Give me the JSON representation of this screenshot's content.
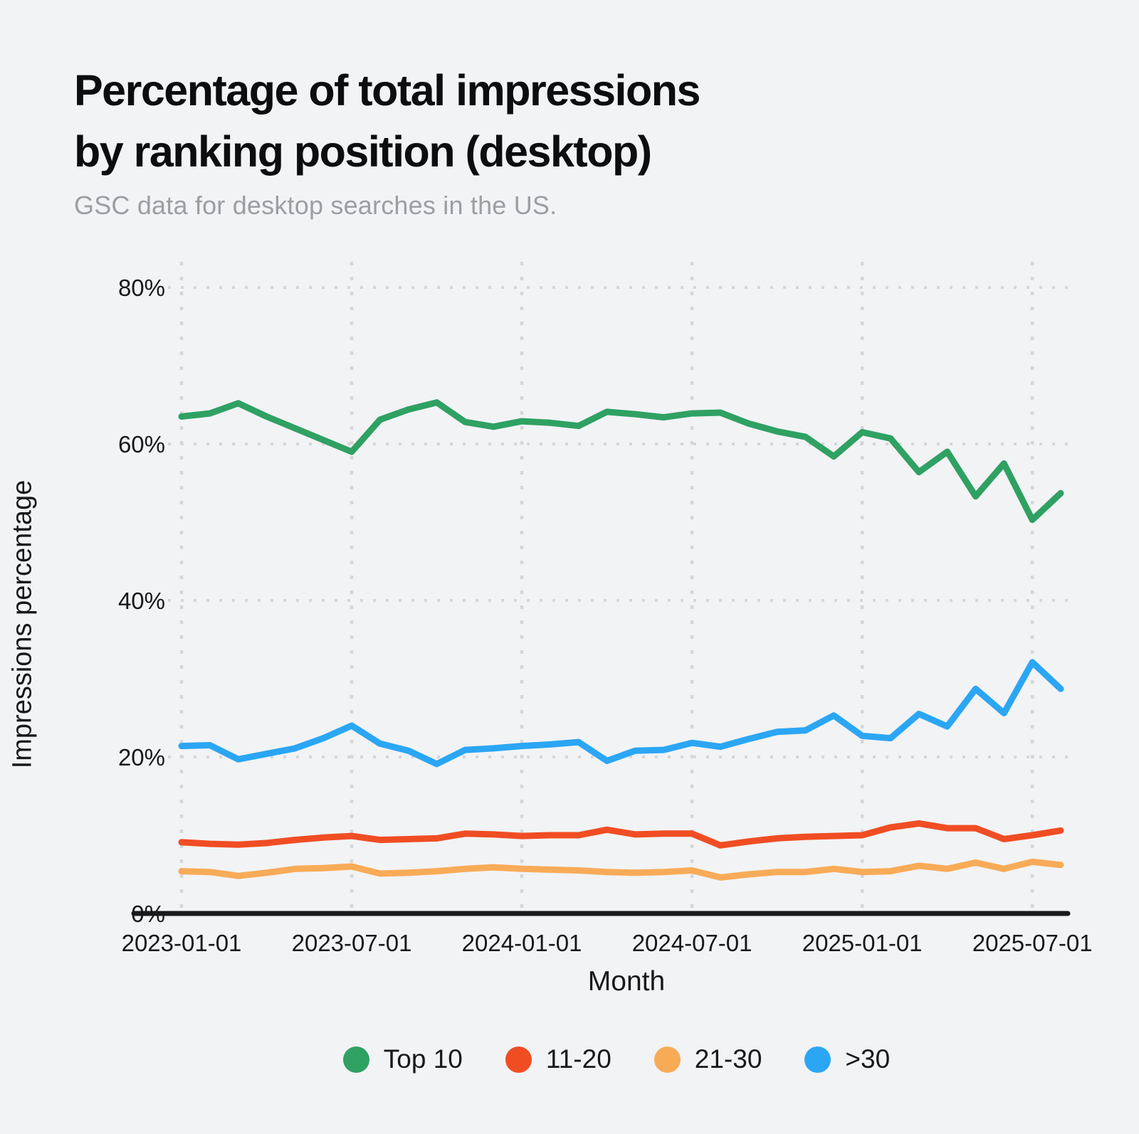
{
  "title": {
    "line1": "Percentage of total impressions",
    "line2": "by ranking position (desktop)"
  },
  "subtitle": "GSC data for desktop searches in the US.",
  "colors": {
    "background": "#f2f3f5",
    "title_text": "#0c0d0e",
    "subtitle_text": "#9b9ea3",
    "tick_text": "#17181a",
    "gridline": "#d5d6d8",
    "axis_line": "#1a1b1c"
  },
  "chart_data": {
    "type": "line",
    "title": "Percentage of total impressions by ranking position (desktop)",
    "subtitle": "GSC data for desktop searches in the US.",
    "xlabel": "Month",
    "ylabel": "Impressions percentage",
    "ylim": [
      0,
      80
    ],
    "grid": "dotted",
    "legend_position": "bottom",
    "x": [
      "2023-01",
      "2023-02",
      "2023-03",
      "2023-04",
      "2023-05",
      "2023-06",
      "2023-07",
      "2023-08",
      "2023-09",
      "2023-10",
      "2023-11",
      "2023-12",
      "2024-01",
      "2024-02",
      "2024-03",
      "2024-04",
      "2024-05",
      "2024-06",
      "2024-07",
      "2024-08",
      "2024-09",
      "2024-10",
      "2024-11",
      "2024-12",
      "2025-01",
      "2025-02",
      "2025-03",
      "2025-04",
      "2025-05",
      "2025-06",
      "2025-07",
      "2025-08"
    ],
    "x_ticks": [
      {
        "i": 0,
        "label": "2023-01-01"
      },
      {
        "i": 6,
        "label": "2023-07-01"
      },
      {
        "i": 12,
        "label": "2024-01-01"
      },
      {
        "i": 18,
        "label": "2024-07-01"
      },
      {
        "i": 24,
        "label": "2025-01-01"
      },
      {
        "i": 30,
        "label": "2025-07-01"
      }
    ],
    "y_ticks": [
      {
        "v": 0,
        "label": "0%"
      },
      {
        "v": 20,
        "label": "20%"
      },
      {
        "v": 40,
        "label": "40%"
      },
      {
        "v": 60,
        "label": "60%"
      },
      {
        "v": 80,
        "label": "80%"
      }
    ],
    "series": [
      {
        "name": "Top 10",
        "color": "#2fa163",
        "values": [
          63.5,
          63.9,
          65.2,
          63.5,
          62.0,
          60.5,
          59.0,
          63.1,
          64.4,
          65.3,
          62.8,
          62.2,
          62.9,
          62.7,
          62.3,
          64.1,
          63.8,
          63.4,
          63.9,
          64.0,
          62.6,
          61.6,
          60.9,
          58.4,
          61.5,
          60.7,
          56.4,
          59.0,
          53.3,
          57.5,
          50.3,
          53.7
        ]
      },
      {
        "name": "11-20",
        "color": "#f04d23",
        "values": [
          9.1,
          8.9,
          8.8,
          9.0,
          9.4,
          9.7,
          9.9,
          9.4,
          9.5,
          9.6,
          10.2,
          10.1,
          9.9,
          10.0,
          10.0,
          10.7,
          10.1,
          10.2,
          10.2,
          8.7,
          9.2,
          9.6,
          9.8,
          9.9,
          10.0,
          11.0,
          11.5,
          10.9,
          10.9,
          9.5,
          10.0,
          10.6
        ]
      },
      {
        "name": "21-30",
        "color": "#f8ab57",
        "values": [
          5.4,
          5.3,
          4.8,
          5.2,
          5.7,
          5.8,
          6.0,
          5.1,
          5.2,
          5.4,
          5.7,
          5.9,
          5.7,
          5.6,
          5.5,
          5.3,
          5.2,
          5.3,
          5.5,
          4.6,
          5.0,
          5.3,
          5.3,
          5.7,
          5.3,
          5.4,
          6.1,
          5.7,
          6.5,
          5.7,
          6.6,
          6.2
        ]
      },
      {
        "name": ">30",
        "color": "#2ba6f4",
        "values": [
          21.4,
          21.5,
          19.7,
          20.4,
          21.1,
          22.4,
          24.0,
          21.7,
          20.8,
          19.1,
          20.9,
          21.1,
          21.4,
          21.6,
          21.9,
          19.5,
          20.8,
          20.9,
          21.8,
          21.3,
          22.3,
          23.2,
          23.4,
          25.3,
          22.7,
          22.4,
          25.5,
          23.9,
          28.7,
          25.6,
          32.1,
          28.7
        ]
      }
    ]
  },
  "legend": {
    "items": [
      {
        "label": "Top 10"
      },
      {
        "label": "11-20"
      },
      {
        "label": "21-30"
      },
      {
        "label": ">30"
      }
    ]
  }
}
